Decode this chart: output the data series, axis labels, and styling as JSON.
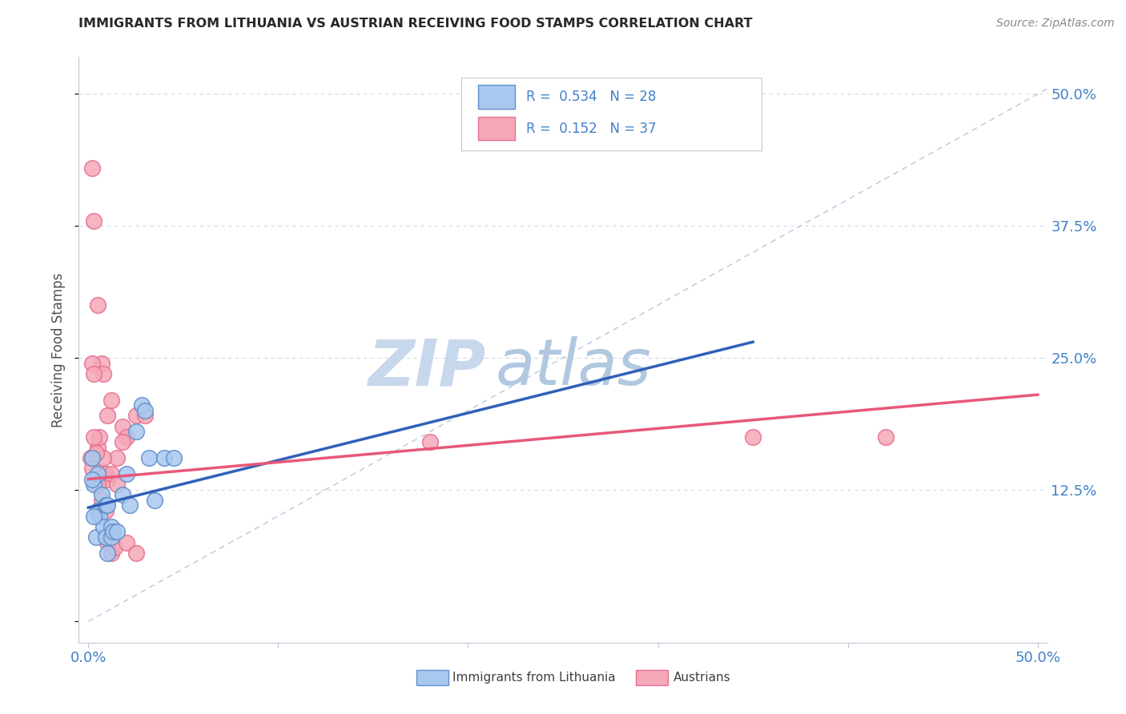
{
  "title": "IMMIGRANTS FROM LITHUANIA VS AUSTRIAN RECEIVING FOOD STAMPS CORRELATION CHART",
  "source": "Source: ZipAtlas.com",
  "ylabel": "Receiving Food Stamps",
  "y_ticks": [
    0.0,
    0.125,
    0.25,
    0.375,
    0.5
  ],
  "xlim": [
    -0.005,
    0.505
  ],
  "ylim": [
    -0.02,
    0.535
  ],
  "lithuania_R": 0.534,
  "lithuania_N": 28,
  "austrian_R": 0.152,
  "austrian_N": 37,
  "legend_label_blue": "Immigrants from Lithuania",
  "legend_label_pink": "Austrians",
  "blue_scatter_color": "#a8c8f0",
  "pink_scatter_color": "#f4a8b8",
  "blue_edge_color": "#6090c8",
  "pink_edge_color": "#e87090",
  "blue_line_color": "#3060b8",
  "pink_line_color": "#e85878",
  "diag_line_color": "#b8c8dc",
  "background_color": "#ffffff",
  "grid_color": "#d0d8e8",
  "title_color": "#282828",
  "tick_label_color": "#4080c8",
  "legend_text_color": "#4080c8",
  "watermark_zip_color": "#c8d8ec",
  "watermark_atlas_color": "#b0c8e0",
  "lithuania_points": [
    [
      0.002,
      0.155
    ],
    [
      0.003,
      0.13
    ],
    [
      0.004,
      0.08
    ],
    [
      0.005,
      0.105
    ],
    [
      0.005,
      0.14
    ],
    [
      0.006,
      0.1
    ],
    [
      0.007,
      0.12
    ],
    [
      0.008,
      0.09
    ],
    [
      0.009,
      0.08
    ],
    [
      0.009,
      0.11
    ],
    [
      0.01,
      0.065
    ],
    [
      0.01,
      0.11
    ],
    [
      0.012,
      0.08
    ],
    [
      0.012,
      0.09
    ],
    [
      0.013,
      0.085
    ],
    [
      0.015,
      0.085
    ],
    [
      0.018,
      0.12
    ],
    [
      0.02,
      0.14
    ],
    [
      0.022,
      0.11
    ],
    [
      0.025,
      0.18
    ],
    [
      0.028,
      0.205
    ],
    [
      0.03,
      0.2
    ],
    [
      0.032,
      0.155
    ],
    [
      0.035,
      0.115
    ],
    [
      0.04,
      0.155
    ],
    [
      0.045,
      0.155
    ],
    [
      0.002,
      0.135
    ],
    [
      0.003,
      0.1
    ]
  ],
  "austrian_points": [
    [
      0.002,
      0.43
    ],
    [
      0.003,
      0.38
    ],
    [
      0.005,
      0.3
    ],
    [
      0.007,
      0.245
    ],
    [
      0.008,
      0.235
    ],
    [
      0.01,
      0.195
    ],
    [
      0.012,
      0.21
    ],
    [
      0.015,
      0.155
    ],
    [
      0.018,
      0.185
    ],
    [
      0.02,
      0.175
    ],
    [
      0.025,
      0.195
    ],
    [
      0.03,
      0.195
    ],
    [
      0.002,
      0.245
    ],
    [
      0.003,
      0.235
    ],
    [
      0.005,
      0.165
    ],
    [
      0.006,
      0.175
    ],
    [
      0.008,
      0.155
    ],
    [
      0.009,
      0.14
    ],
    [
      0.01,
      0.135
    ],
    [
      0.012,
      0.14
    ],
    [
      0.015,
      0.13
    ],
    [
      0.018,
      0.17
    ],
    [
      0.001,
      0.155
    ],
    [
      0.002,
      0.145
    ],
    [
      0.003,
      0.175
    ],
    [
      0.004,
      0.16
    ],
    [
      0.005,
      0.13
    ],
    [
      0.007,
      0.115
    ],
    [
      0.009,
      0.105
    ],
    [
      0.01,
      0.075
    ],
    [
      0.012,
      0.065
    ],
    [
      0.014,
      0.07
    ],
    [
      0.02,
      0.075
    ],
    [
      0.025,
      0.065
    ],
    [
      0.18,
      0.17
    ],
    [
      0.35,
      0.175
    ],
    [
      0.42,
      0.175
    ]
  ],
  "lith_line_x_start": 0.0,
  "lith_line_x_end": 0.35,
  "aust_line_x_start": 0.0,
  "aust_line_x_end": 0.5
}
